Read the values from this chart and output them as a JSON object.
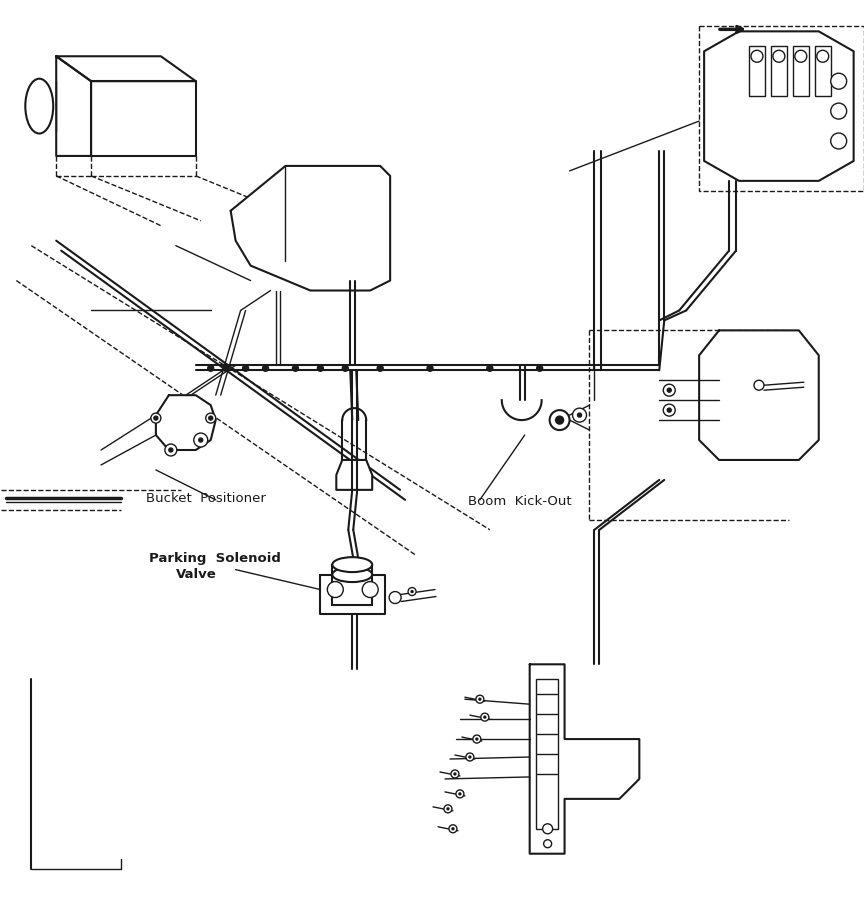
{
  "bg_color": "#ffffff",
  "line_color": "#1a1a1a",
  "labels": {
    "bucket_positioner": "Bucket  Positioner",
    "boom_kickout": "Boom  Kick-Out",
    "parking_solenoid_1": "Parking  Solenoid",
    "parking_solenoid_2": "Valve"
  },
  "figsize": [
    8.65,
    9.0
  ],
  "dpi": 100
}
